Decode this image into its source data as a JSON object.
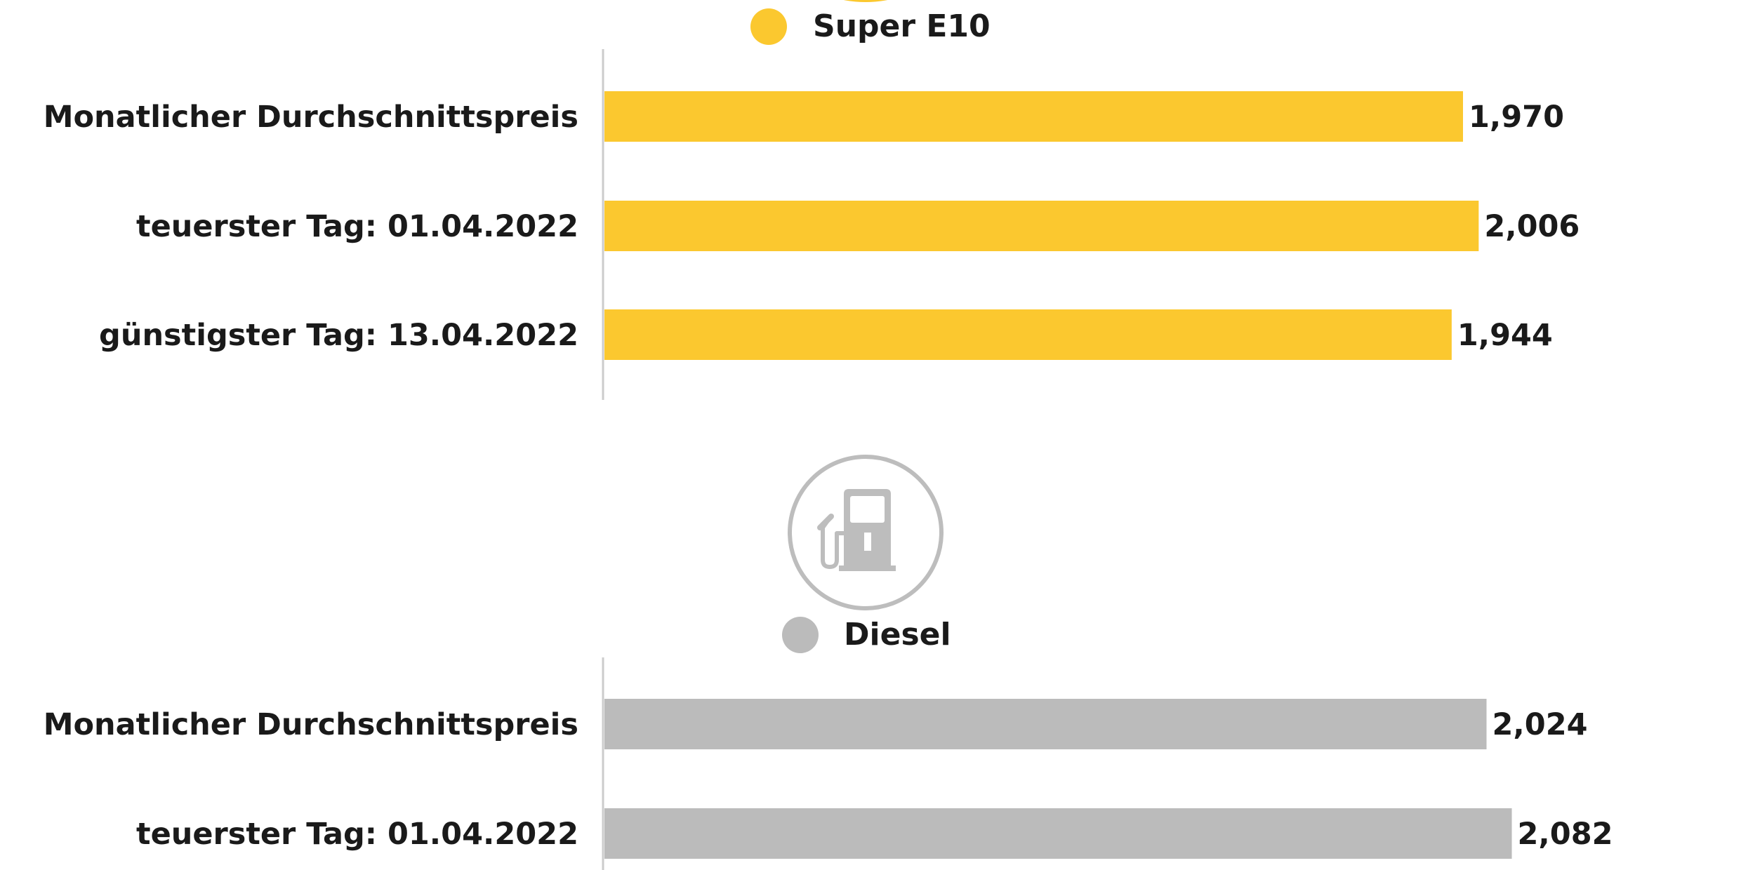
{
  "chart_data": [
    {
      "type": "bar",
      "orientation": "horizontal",
      "legend": "Super E10",
      "icon": "fuel-pump-icon",
      "categories": [
        "Monatlicher Durchschnittspreis",
        "teuerster Tag: 01.04.2022",
        "günstigster Tag: 13.04.2022"
      ],
      "values": [
        1.97,
        2.006,
        1.944
      ],
      "value_labels": [
        "1,970",
        "2,006",
        "1,944"
      ],
      "color": "#FBC82F",
      "xlim": [
        0,
        2.15
      ],
      "grid": false
    },
    {
      "type": "bar",
      "orientation": "horizontal",
      "legend": "Diesel",
      "icon": "fuel-pump-icon",
      "categories": [
        "Monatlicher Durchschnittspreis",
        "teuerster Tag: 01.04.2022"
      ],
      "values": [
        2.024,
        2.082
      ],
      "value_labels": [
        "2,024",
        "2,082"
      ],
      "color": "#BBBBBB",
      "xlim": [
        0,
        2.15
      ],
      "grid": false
    }
  ]
}
